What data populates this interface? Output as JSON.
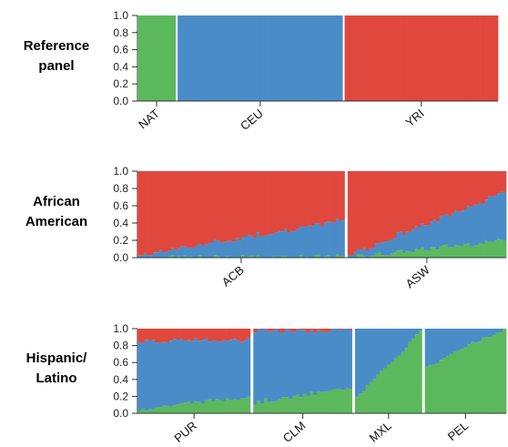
{
  "colors": {
    "NAT": "#5cb85c",
    "CEU": "#4a8cc8",
    "YRI": "#e0483e"
  },
  "chart_data": [
    {
      "type": "bar",
      "stacked": true,
      "title": "Reference panel",
      "title_lines": [
        "Reference",
        "panel"
      ],
      "ylim": [
        0,
        1
      ],
      "yticks": [
        "0.0",
        "0.2",
        "0.4",
        "0.6",
        "0.8",
        "1.0"
      ],
      "populations": [
        {
          "label": "NAT",
          "n": 13,
          "components": {
            "NAT": [
              1,
              1
            ],
            "CEU": [
              0,
              0
            ],
            "YRI": [
              0,
              0
            ]
          }
        },
        {
          "label": "CEU",
          "n": 56,
          "components": {
            "NAT": [
              0,
              0
            ],
            "CEU": [
              1,
              1
            ],
            "YRI": [
              0,
              0
            ]
          }
        },
        {
          "label": "YRI",
          "n": 52,
          "components": {
            "NAT": [
              0,
              0
            ],
            "CEU": [
              0,
              0
            ],
            "YRI": [
              1,
              1
            ]
          }
        }
      ],
      "series": [
        {
          "name": "NAT"
        },
        {
          "name": "CEU"
        },
        {
          "name": "YRI"
        }
      ]
    },
    {
      "type": "bar",
      "stacked": true,
      "title": "African American",
      "title_lines": [
        "African",
        "American"
      ],
      "ylim": [
        0,
        1
      ],
      "yticks": [
        "0.0",
        "0.2",
        "0.4",
        "0.6",
        "0.8",
        "1.0"
      ],
      "populations": [
        {
          "label": "ACB",
          "n": 68,
          "components": {
            "NAT": [
              0,
              0.01
            ],
            "CEU": [
              0.02,
              0.42
            ],
            "YRI": [
              0.98,
              0.57
            ]
          }
        },
        {
          "label": "ASW",
          "n": 52,
          "components": {
            "NAT": [
              0,
              0.2
            ],
            "CEU": [
              0.03,
              0.55
            ],
            "YRI": [
              0.97,
              0.25
            ]
          }
        }
      ],
      "series": [
        {
          "name": "NAT"
        },
        {
          "name": "CEU"
        },
        {
          "name": "YRI"
        }
      ]
    },
    {
      "type": "bar",
      "stacked": true,
      "title": "Hispanic/ Latino",
      "title_lines": [
        "Hispanic/",
        "Latino"
      ],
      "ylim": [
        0,
        1
      ],
      "yticks": [
        "0.0",
        "0.2",
        "0.4",
        "0.6",
        "0.8",
        "1.0"
      ],
      "populations": [
        {
          "label": "PUR",
          "n": 32,
          "components": {
            "NAT": [
              0.05,
              0.2
            ],
            "CEU": [
              0.8,
              0.67
            ],
            "YRI": [
              0.15,
              0.13
            ]
          }
        },
        {
          "label": "CLM",
          "n": 28,
          "components": {
            "NAT": [
              0.12,
              0.3
            ],
            "CEU": [
              0.85,
              0.68
            ],
            "YRI": [
              0.03,
              0.02
            ]
          }
        },
        {
          "label": "MXL",
          "n": 19,
          "components": {
            "NAT": [
              0.2,
              0.95
            ],
            "CEU": [
              0.8,
              0.05
            ],
            "YRI": [
              0,
              0
            ]
          }
        },
        {
          "label": "PEL",
          "n": 23,
          "components": {
            "NAT": [
              0.55,
              1.0
            ],
            "CEU": [
              0.45,
              0
            ],
            "YRI": [
              0,
              0
            ]
          }
        }
      ],
      "series": [
        {
          "name": "NAT"
        },
        {
          "name": "CEU"
        },
        {
          "name": "YRI"
        }
      ]
    }
  ]
}
